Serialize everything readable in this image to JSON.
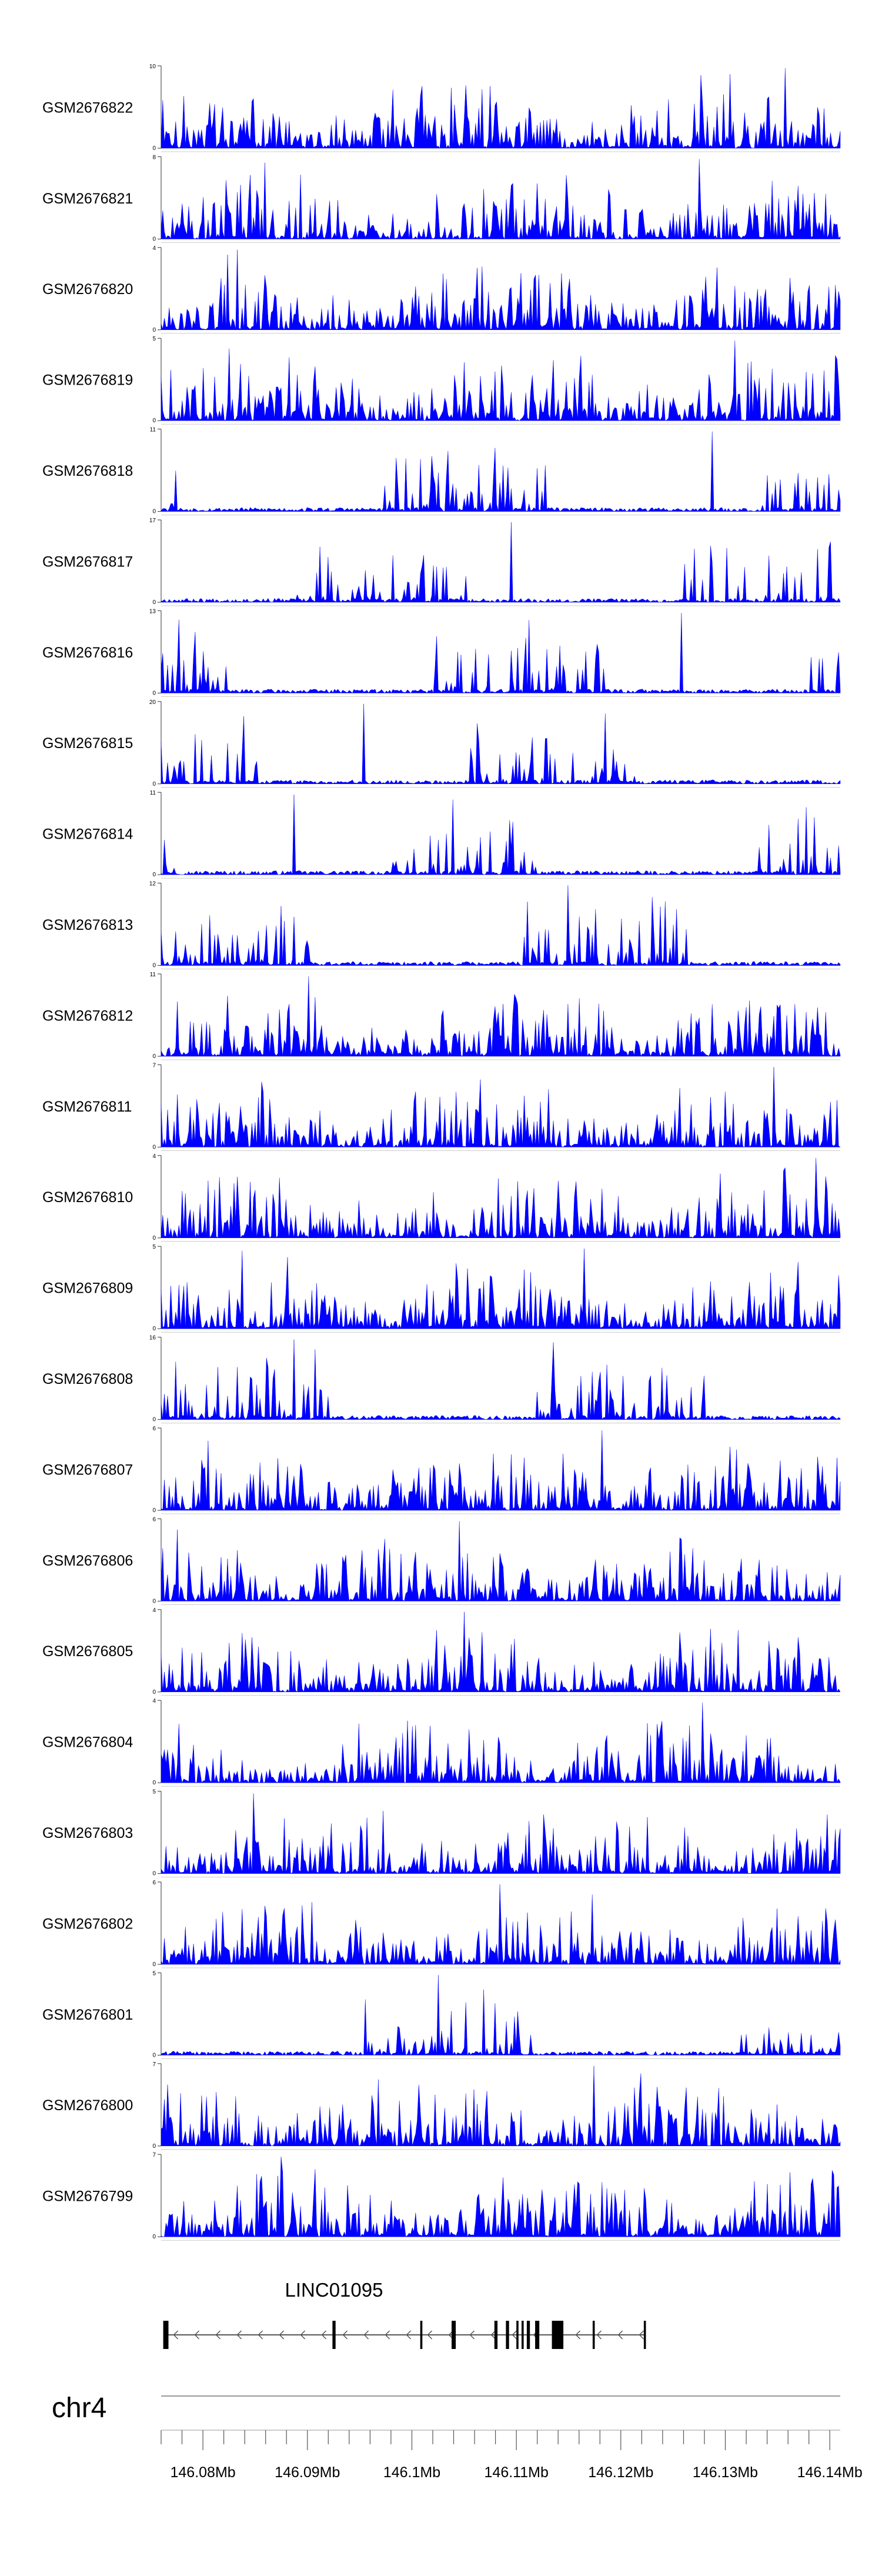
{
  "chart_data": {
    "type": "area",
    "title": "",
    "fill_color": "#0000ff",
    "region": {
      "chromosome": "chr4",
      "start": 146076000,
      "end": 146141000
    },
    "tracks": [
      {
        "name": "GSM2676822",
        "ymax": "10",
        "ymin": "0",
        "peak": 10,
        "seed": 11,
        "sparse": false
      },
      {
        "name": "GSM2676821",
        "ymax": "8",
        "ymin": "0",
        "peak": 8,
        "seed": 23,
        "sparse": false
      },
      {
        "name": "GSM2676820",
        "ymax": "4",
        "ymin": "0",
        "peak": 4,
        "seed": 37,
        "sparse": false
      },
      {
        "name": "GSM2676819",
        "ymax": "5",
        "ymin": "0",
        "peak": 5,
        "seed": 41,
        "sparse": false
      },
      {
        "name": "GSM2676818",
        "ymax": "11",
        "ymin": "0",
        "peak": 11,
        "seed": 53,
        "sparse": true
      },
      {
        "name": "GSM2676817",
        "ymax": "17",
        "ymin": "0",
        "peak": 17,
        "seed": 67,
        "sparse": true
      },
      {
        "name": "GSM2676816",
        "ymax": "13",
        "ymin": "0",
        "peak": 13,
        "seed": 71,
        "sparse": true
      },
      {
        "name": "GSM2676815",
        "ymax": "20",
        "ymin": "0",
        "peak": 20,
        "seed": 83,
        "sparse": true
      },
      {
        "name": "GSM2676814",
        "ymax": "11",
        "ymin": "0",
        "peak": 11,
        "seed": 97,
        "sparse": true
      },
      {
        "name": "GSM2676813",
        "ymax": "12",
        "ymin": "0",
        "peak": 12,
        "seed": 101,
        "sparse": true
      },
      {
        "name": "GSM2676812",
        "ymax": "11",
        "ymin": "0",
        "peak": 11,
        "seed": 113,
        "sparse": false
      },
      {
        "name": "GSM2676811",
        "ymax": "7",
        "ymin": "0",
        "peak": 7,
        "seed": 127,
        "sparse": false
      },
      {
        "name": "GSM2676810",
        "ymax": "4",
        "ymin": "0",
        "peak": 4,
        "seed": 131,
        "sparse": false
      },
      {
        "name": "GSM2676809",
        "ymax": "5",
        "ymin": "0",
        "peak": 5,
        "seed": 149,
        "sparse": false
      },
      {
        "name": "GSM2676808",
        "ymax": "16",
        "ymin": "0",
        "peak": 16,
        "seed": 151,
        "sparse": true
      },
      {
        "name": "GSM2676807",
        "ymax": "6",
        "ymin": "0",
        "peak": 6,
        "seed": 163,
        "sparse": false
      },
      {
        "name": "GSM2676806",
        "ymax": "6",
        "ymin": "0",
        "peak": 6,
        "seed": 173,
        "sparse": false
      },
      {
        "name": "GSM2676805",
        "ymax": "4",
        "ymin": "0",
        "peak": 4,
        "seed": 181,
        "sparse": false
      },
      {
        "name": "GSM2676804",
        "ymax": "4",
        "ymin": "0",
        "peak": 4,
        "seed": 191,
        "sparse": false
      },
      {
        "name": "GSM2676803",
        "ymax": "5",
        "ymin": "0",
        "peak": 5,
        "seed": 197,
        "sparse": false
      },
      {
        "name": "GSM2676802",
        "ymax": "6",
        "ymin": "0",
        "peak": 6,
        "seed": 211,
        "sparse": false
      },
      {
        "name": "GSM2676801",
        "ymax": "5",
        "ymin": "0",
        "peak": 5,
        "seed": 223,
        "sparse": true
      },
      {
        "name": "GSM2676800",
        "ymax": "7",
        "ymin": "0",
        "peak": 7,
        "seed": 227,
        "sparse": false
      },
      {
        "name": "GSM2676799",
        "ymax": "7",
        "ymin": "0",
        "peak": 7,
        "seed": 229,
        "sparse": false
      }
    ],
    "gene": {
      "name": "LINC01095",
      "strand": "-",
      "start": 146076200,
      "end": 146122400,
      "exons": [
        [
          146076200,
          146076700
        ],
        [
          146092400,
          146092700
        ],
        [
          146100800,
          146101000
        ],
        [
          146103800,
          146104200
        ],
        [
          146107900,
          146108200
        ],
        [
          146109000,
          146109300
        ],
        [
          146110000,
          146110200
        ],
        [
          146110500,
          146110700
        ],
        [
          146111000,
          146111300
        ],
        [
          146111800,
          146112200
        ],
        [
          146113400,
          146114500
        ],
        [
          146117300,
          146117500
        ],
        [
          146122200,
          146122400
        ]
      ]
    },
    "x_axis": {
      "chromosome_label": "chr4",
      "tick_labels": [
        "146.08Mb",
        "146.09Mb",
        "146.1Mb",
        "146.11Mb",
        "146.12Mb",
        "146.13Mb",
        "146.14Mb"
      ],
      "major_ticks": [
        146080000,
        146090000,
        146100000,
        146110000,
        146120000,
        146130000,
        146140000
      ],
      "minor_tick_step": 2000
    }
  }
}
